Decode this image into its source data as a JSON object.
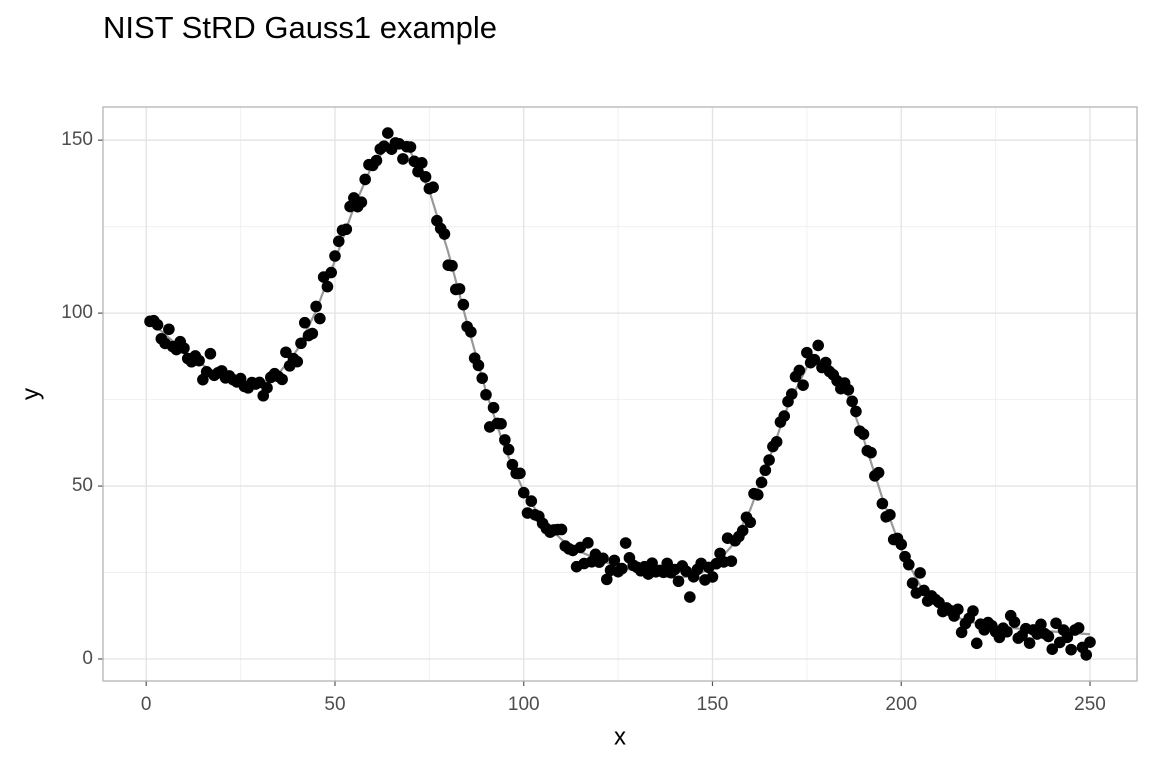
{
  "chart_data": {
    "type": "scatter",
    "title": "NIST StRD Gauss1 example",
    "x_label": "x",
    "y_label": "y",
    "xlim": [
      -11.45,
      262.45
    ],
    "ylim": [
      -6.36,
      159.59
    ],
    "xticks": [
      0,
      50,
      100,
      150,
      200,
      250
    ],
    "yticks": [
      0,
      50,
      100,
      150
    ],
    "x_minor_ticks": [
      25,
      75,
      125,
      175,
      225
    ],
    "y_minor_ticks": [
      25,
      75,
      125
    ],
    "grid": true,
    "color": "#000000",
    "x": [
      1,
      2,
      3,
      4,
      5,
      6,
      7,
      8,
      9,
      10,
      11,
      12,
      13,
      14,
      15,
      16,
      17,
      18,
      19,
      20,
      21,
      22,
      23,
      24,
      25,
      26,
      27,
      28,
      29,
      30,
      31,
      32,
      33,
      34,
      35,
      36,
      37,
      38,
      39,
      40,
      41,
      42,
      43,
      44,
      45,
      46,
      47,
      48,
      49,
      50,
      51,
      52,
      53,
      54,
      55,
      56,
      57,
      58,
      59,
      60,
      61,
      62,
      63,
      64,
      65,
      66,
      67,
      68,
      69,
      70,
      71,
      72,
      73,
      74,
      75,
      76,
      77,
      78,
      79,
      80,
      81,
      82,
      83,
      84,
      85,
      86,
      87,
      88,
      89,
      90,
      91,
      92,
      93,
      94,
      95,
      96,
      97,
      98,
      99,
      100,
      101,
      102,
      103,
      104,
      105,
      106,
      107,
      108,
      109,
      110,
      111,
      112,
      113,
      114,
      115,
      116,
      117,
      118,
      119,
      120,
      121,
      122,
      123,
      124,
      125,
      126,
      127,
      128,
      129,
      130,
      131,
      132,
      133,
      134,
      135,
      136,
      137,
      138,
      139,
      140,
      141,
      142,
      143,
      144,
      145,
      146,
      147,
      148,
      149,
      150,
      151,
      152,
      153,
      154,
      155,
      156,
      157,
      158,
      159,
      160,
      161,
      162,
      163,
      164,
      165,
      166,
      167,
      168,
      169,
      170,
      171,
      172,
      173,
      174,
      175,
      176,
      177,
      178,
      179,
      180,
      181,
      182,
      183,
      184,
      185,
      186,
      187,
      188,
      189,
      190,
      191,
      192,
      193,
      194,
      195,
      196,
      197,
      198,
      199,
      200,
      201,
      202,
      203,
      204,
      205,
      206,
      207,
      208,
      209,
      210,
      211,
      212,
      213,
      214,
      215,
      216,
      217,
      218,
      219,
      220,
      221,
      222,
      223,
      224,
      225,
      226,
      227,
      228,
      229,
      230,
      231,
      232,
      233,
      234,
      235,
      236,
      237,
      238,
      239,
      240,
      241,
      242,
      243,
      244,
      245,
      246,
      247,
      248,
      249,
      250
    ],
    "values": [
      97.62227,
      97.80724,
      96.62247,
      92.59022,
      91.23869,
      95.32704,
      90.3504,
      89.46235,
      91.7252,
      89.86916,
      86.88076,
      85.9436,
      87.60686,
      86.25839,
      80.74976,
      83.03551,
      88.25837,
      82.01316,
      82.74098,
      83.30034,
      81.2785,
      81.85506,
      80.75195,
      80.09573,
      81.07633,
      78.81542,
      78.38596,
      79.93386,
      79.48474,
      79.95942,
      76.10691,
      78.3983,
      81.4306,
      82.48867,
      81.65462,
      80.84323,
      88.68663,
      84.74438,
      86.83934,
      85.97739,
      91.28509,
      97.22411,
      93.51733,
      94.10159,
      101.9176,
      98.43134,
      110.4214,
      107.6628,
      111.7288,
      116.5115,
      120.7609,
      123.9553,
      124.2437,
      130.7996,
      133.296,
      130.7788,
      132.0565,
      138.6584,
      142.9252,
      142.7215,
      144.1249,
      147.4377,
      148.2647,
      152.0519,
      147.3863,
      149.2074,
      148.9537,
      144.5876,
      148.1226,
      148.0144,
      143.8893,
      140.9088,
      143.4434,
      139.3938,
      135.9878,
      136.3927,
      126.7262,
      124.4487,
      122.8647,
      113.8557,
      113.7037,
      106.8407,
      107.0034,
      102.4629,
      96.09296,
      94.57555,
      86.98824,
      84.90154,
      81.18023,
      76.40117,
      67.092,
      72.67155,
      68.10848,
      67.99088,
      63.34094,
      60.55253,
      56.18687,
      53.64482,
      53.70307,
      48.07893,
      42.21258,
      45.65181,
      41.69728,
      41.24946,
      39.21349,
      37.71696,
      36.68395,
      37.30393,
      37.43277,
      37.45012,
      32.64648,
      31.84347,
      31.39951,
      26.68912,
      32.25323,
      27.61008,
      33.58649,
      28.10714,
      30.26428,
      28.01648,
      29.11021,
      23.02099,
      25.65091,
      28.50295,
      25.23701,
      26.13828,
      33.5326,
      29.25195,
      27.09847,
      26.52999,
      25.52401,
      26.69218,
      24.55269,
      27.71763,
      25.20297,
      25.61483,
      25.06893,
      27.6393,
      24.94851,
      25.86806,
      22.48183,
      26.90045,
      25.39919,
      17.90614,
      23.76039,
      25.89689,
      27.64231,
      22.86101,
      26.47003,
      23.72888,
      27.54334,
      30.52683,
      28.07261,
      34.92815,
      28.29194,
      34.19161,
      35.41207,
      37.09336,
      40.9833,
      39.53923,
      47.80123,
      47.46305,
      51.04166,
      54.58065,
      57.53001,
      61.42089,
      62.79032,
      68.51455,
      70.23053,
      74.42776,
      76.59911,
      81.62053,
      83.42208,
      79.17451,
      88.56985,
      85.66525,
      86.55502,
      90.65907,
      84.2729,
      85.7222,
      83.10702,
      82.16884,
      80.42568,
      78.15692,
      79.79691,
      77.84378,
      74.50327,
      71.57289,
      65.88031,
      65.01385,
      60.19582,
      59.66726,
      52.95478,
      53.87792,
      44.91274,
      41.09909,
      41.68018,
      34.53379,
      34.86419,
      33.14787,
      29.58864,
      27.29462,
      21.91439,
      19.08159,
      24.9029,
      19.82341,
      16.75551,
      18.24558,
      17.23549,
      16.34934,
      13.71285,
      14.75676,
      13.97169,
      12.42867,
      14.35519,
      7.703309,
      10.23441,
      11.78315,
      13.87768,
      4.5357,
      10.05928,
      8.424824,
      10.53312,
      9.602255,
      7.877514,
      6.258121,
      8.899865,
      7.877754,
      12.51191,
      10.66205,
      6.0354,
      6.790655,
      8.783535,
      4.600288,
      8.400915,
      7.216561,
      10.01741,
      7.331278,
      6.527863,
      2.842001,
      10.32507,
      4.790995,
      8.377101,
      6.264445,
      2.706213,
      8.362329,
      8.983658,
      3.362571,
      1.182746,
      4.875359
    ],
    "fit": {
      "color": "#999999",
      "x": [
        1,
        5,
        10,
        15,
        20,
        25,
        30,
        35,
        40,
        45,
        50,
        55,
        60,
        65,
        70,
        75,
        80,
        85,
        90,
        95,
        100,
        105,
        110,
        115,
        120,
        125,
        130,
        135,
        140,
        145,
        150,
        155,
        160,
        165,
        170,
        175,
        180,
        185,
        190,
        195,
        200,
        205,
        210,
        215,
        220,
        225,
        230,
        235,
        240,
        245,
        250
      ],
      "values": [
        97.77,
        93.8,
        89.14,
        84.97,
        81.56,
        79.42,
        79.37,
        82.4,
        89.4,
        100.66,
        115.2,
        130.55,
        143.13,
        149.27,
        146.67,
        135.36,
        117.62,
        97.09,
        77.35,
        60.83,
        48.49,
        40.05,
        34.55,
        31.01,
        28.61,
        26.81,
        25.36,
        24.2,
        23.53,
        23.92,
        26.45,
        32.52,
        43.18,
        57.81,
        73.25,
        84.4,
        86.71,
        78.89,
        63.77,
        46.51,
        31.63,
        21.23,
        15.09,
        11.9,
        10.31,
        9.45,
        8.87,
        8.39,
        7.95,
        7.55,
        7.16
      ]
    }
  }
}
